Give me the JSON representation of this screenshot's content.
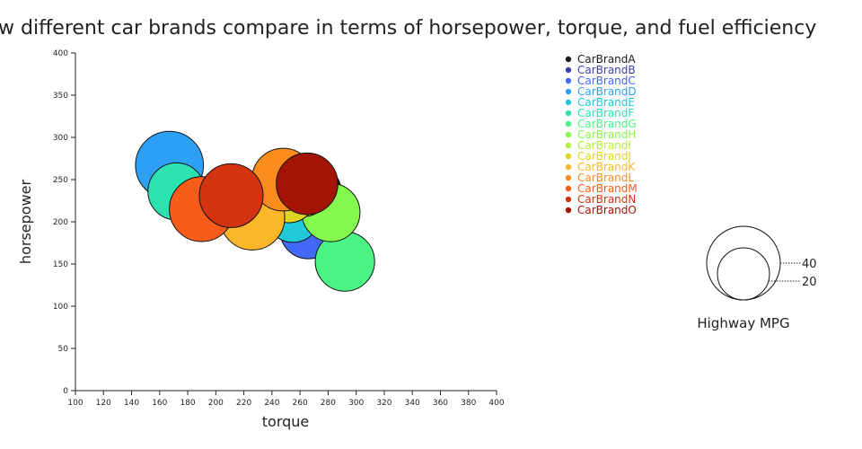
{
  "chart_data": {
    "type": "scatter",
    "title": "how different car brands compare in terms of horsepower, torque, and fuel efficiency",
    "xlabel": "torque",
    "ylabel": "horsepower",
    "xlim": [
      100,
      400
    ],
    "ylim": [
      0,
      400
    ],
    "x_ticks": [
      100,
      120,
      140,
      160,
      180,
      200,
      220,
      240,
      260,
      280,
      300,
      320,
      340,
      360,
      380,
      400
    ],
    "y_ticks": [
      0,
      50,
      100,
      150,
      200,
      250,
      300,
      350,
      400
    ],
    "grid": false,
    "legend_position": "top-right",
    "size_legend": {
      "title": "Highway MPG",
      "values": [
        40,
        20
      ]
    },
    "series": [
      {
        "name": "CarBrandA",
        "color": "#1a1a1a",
        "torque": 270,
        "horsepower": 235,
        "mpg": 22
      },
      {
        "name": "CarBrandB",
        "color": "#3d3fb0",
        "torque": 248,
        "horsepower": 228,
        "mpg": 22
      },
      {
        "name": "CarBrandC",
        "color": "#4269f5",
        "torque": 266,
        "horsepower": 190,
        "mpg": 24
      },
      {
        "name": "CarBrandD",
        "color": "#2d9ff5",
        "torque": 167,
        "horsepower": 267,
        "mpg": 34
      },
      {
        "name": "CarBrandE",
        "color": "#1fc9d8",
        "torque": 255,
        "horsepower": 208,
        "mpg": 22
      },
      {
        "name": "CarBrandF",
        "color": "#2be3b0",
        "torque": 172,
        "horsepower": 236,
        "mpg": 24
      },
      {
        "name": "CarBrandG",
        "color": "#4bf584",
        "torque": 292,
        "horsepower": 153,
        "mpg": 26
      },
      {
        "name": "CarBrandH",
        "color": "#84f94e",
        "torque": 282,
        "horsepower": 211,
        "mpg": 25
      },
      {
        "name": "CarBrandI",
        "color": "#b4ef3a",
        "torque": 262,
        "horsepower": 240,
        "mpg": 24
      },
      {
        "name": "CarBrandJ",
        "color": "#dfd523",
        "torque": 252,
        "horsepower": 232,
        "mpg": 23
      },
      {
        "name": "CarBrandK",
        "color": "#fbb729",
        "torque": 226,
        "horsepower": 205,
        "mpg": 31
      },
      {
        "name": "CarBrandL",
        "color": "#fb8c1e",
        "torque": 248,
        "horsepower": 250,
        "mpg": 29
      },
      {
        "name": "CarBrandM",
        "color": "#f85c1b",
        "torque": 190,
        "horsepower": 215,
        "mpg": 31
      },
      {
        "name": "CarBrandN",
        "color": "#d3330f",
        "torque": 211,
        "horsepower": 231,
        "mpg": 30
      },
      {
        "name": "CarBrandO",
        "color": "#a31404",
        "torque": 265,
        "horsepower": 245,
        "mpg": 28
      }
    ]
  }
}
